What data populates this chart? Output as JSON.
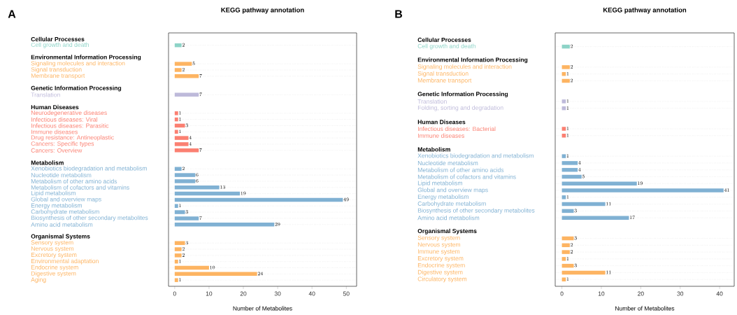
{
  "chart_data": [
    {
      "type": "bar",
      "orientation": "horizontal",
      "title": "KEGG pathway annotation",
      "xlabel": "Number of Metabolites",
      "annotations": [
        "A"
      ],
      "categories": [
        "Cellular Processes",
        "Cell growth and death",
        null,
        "Environmental Information Processing",
        "Signaling molecules and interaction",
        "Signal transduction",
        "Membrane transport",
        null,
        "Genetic Information Processing",
        "Translation",
        null,
        "Human Diseases",
        "Neurodegenerative diseases",
        "Infectious diseases: Viral",
        "Infectious diseases: Parasitic",
        "Immune diseases",
        "Drug resistance: Antineoplastic",
        "Cancers: Specific types",
        "Cancers: Overview",
        null,
        "Metabolism",
        "Xenobiotics biodegradation and metabolism",
        "Nucleotide metabolism",
        "Metabolism of other amino acids",
        "Metabolism of cofactors and vitamins",
        "Lipid metabolism",
        "Global and overview maps",
        "Energy metabolism",
        "Carbohydrate metabolism",
        "Biosynthesis of other secondary metabolites",
        "Amino acid metabolism",
        null,
        "Organismal Systems",
        "Sensory system",
        "Nervous system",
        "Excretory system",
        "Environmental adaptation",
        "Endocrine system",
        "Digestive system",
        "Aging"
      ],
      "values": [
        null,
        2,
        null,
        null,
        5,
        2,
        7,
        null,
        null,
        7,
        null,
        null,
        1,
        1,
        3,
        1,
        4,
        4,
        7,
        null,
        null,
        2,
        6,
        6,
        13,
        19,
        49,
        1,
        3,
        7,
        29,
        null,
        null,
        3,
        2,
        2,
        1,
        10,
        24,
        1
      ],
      "colors": [
        null,
        "#8dd3c7",
        null,
        null,
        "#fdb462",
        "#fdb462",
        "#fdb462",
        null,
        null,
        "#bebada",
        null,
        null,
        "#fb8072",
        "#fb8072",
        "#fb8072",
        "#fb8072",
        "#fb8072",
        "#fb8072",
        "#fb8072",
        null,
        null,
        "#80b1d3",
        "#80b1d3",
        "#80b1d3",
        "#80b1d3",
        "#80b1d3",
        "#80b1d3",
        "#80b1d3",
        "#80b1d3",
        "#80b1d3",
        "#80b1d3",
        null,
        null,
        "#fdb462",
        "#fdb462",
        "#fdb462",
        "#fdb462",
        "#fdb462",
        "#fdb462",
        "#fdb462"
      ],
      "xlim": [
        -1.8,
        53
      ],
      "xticks": [
        0,
        10,
        20,
        30,
        40,
        50
      ],
      "grid": "y",
      "data_labels": true
    },
    {
      "type": "bar",
      "orientation": "horizontal",
      "title": "KEGG pathway annotation",
      "xlabel": "Number of Metabolites",
      "annotations": [
        "B"
      ],
      "categories": [
        "Cellular Processes",
        "Cell growth and death",
        null,
        "Environmental Information Processing",
        "Signaling molecules and interaction",
        "Signal transduction",
        "Membrane transport",
        null,
        "Genetic Information Processing",
        "Translation",
        "Folding, sorting and degradation",
        null,
        "Human Diseases",
        "Infectious diseases: Bacterial",
        "Immune diseases",
        null,
        "Metabolism",
        "Xenobiotics biodegradation and metabolism",
        "Nucleotide metabolism",
        "Metabolism of other amino acids",
        "Metabolism of cofactors and vitamins",
        "Lipid metabolism",
        "Global and overview maps",
        "Energy metabolism",
        "Carbohydrate metabolism",
        "Biosynthesis of other secondary metabolites",
        "Amino acid metabolism",
        null,
        "Organismal Systems",
        "Sensory system",
        "Nervous system",
        "Immune system",
        "Excretory system",
        "Endocrine system",
        "Digestive system",
        "Circulatory system"
      ],
      "values": [
        null,
        2,
        null,
        null,
        2,
        1,
        2,
        null,
        null,
        1,
        1,
        null,
        null,
        1,
        1,
        null,
        null,
        1,
        4,
        4,
        5,
        19,
        41,
        1,
        11,
        3,
        17,
        null,
        null,
        3,
        2,
        2,
        1,
        3,
        11,
        1
      ],
      "colors": [
        null,
        "#8dd3c7",
        null,
        null,
        "#fdb462",
        "#fdb462",
        "#fdb462",
        null,
        null,
        "#bebada",
        "#bebada",
        null,
        null,
        "#fb8072",
        "#fb8072",
        null,
        null,
        "#80b1d3",
        "#80b1d3",
        "#80b1d3",
        "#80b1d3",
        "#80b1d3",
        "#80b1d3",
        "#80b1d3",
        "#80b1d3",
        "#80b1d3",
        "#80b1d3",
        null,
        null,
        "#fdb462",
        "#fdb462",
        "#fdb462",
        "#fdb462",
        "#fdb462",
        "#fdb462",
        "#fdb462"
      ],
      "xlim": [
        -1.7,
        43.7
      ],
      "xticks": [
        0,
        10,
        20,
        30,
        40
      ],
      "grid": "y",
      "data_labels": true
    }
  ]
}
